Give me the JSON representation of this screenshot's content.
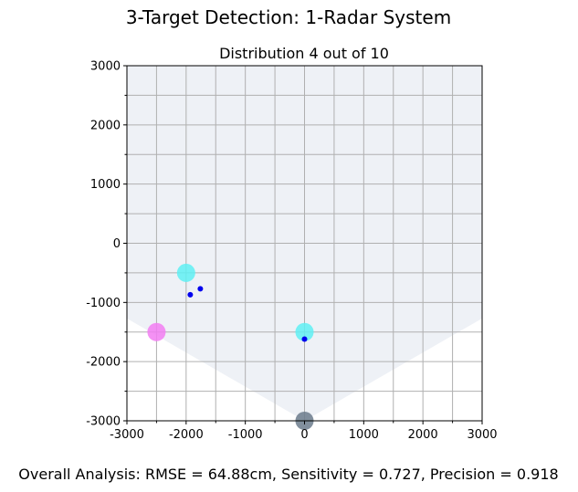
{
  "figure": {
    "title": "3-Target Detection: 1-Radar System",
    "footer": "Overall Analysis: RMSE = 64.88cm, Sensitivity = 0.727, Precision = 0.918"
  },
  "chart_data": {
    "type": "scatter",
    "title": "Distribution 4 out of 10",
    "xlabel": "",
    "ylabel": "",
    "xlim": [
      -3000,
      3000
    ],
    "ylim": [
      -3000,
      3000
    ],
    "xticks": [
      -3000,
      -2000,
      -1000,
      0,
      1000,
      2000,
      3000
    ],
    "yticks": [
      -3000,
      -2000,
      -1000,
      0,
      1000,
      2000,
      3000
    ],
    "xticks_minor": [
      -2500,
      -1500,
      -500,
      500,
      1500,
      2500
    ],
    "yticks_minor": [
      -2500,
      -1500,
      -500,
      500,
      1500,
      2500
    ],
    "grid": true,
    "coverage_region": {
      "color": "#eef1f6",
      "polygon": [
        [
          -3000,
          3000
        ],
        [
          3000,
          3000
        ],
        [
          3000,
          -1270
        ],
        [
          0,
          -3000
        ],
        [
          -3000,
          -1270
        ]
      ]
    },
    "series": [
      {
        "role": "radar",
        "color": "#6b7b8c",
        "size": "large",
        "points": [
          [
            0,
            -3000
          ]
        ]
      },
      {
        "role": "target",
        "color": "#5ff0f3",
        "size": "large",
        "points": [
          [
            -2000,
            -500
          ],
          [
            0,
            -1500
          ]
        ]
      },
      {
        "role": "missed-target",
        "color": "#f27ef2",
        "size": "large",
        "points": [
          [
            -2500,
            -1500
          ]
        ]
      },
      {
        "role": "detection",
        "color": "#0000ee",
        "size": "small",
        "points": [
          [
            -1930,
            -870
          ],
          [
            -1760,
            -770
          ],
          [
            0,
            -1620
          ]
        ]
      }
    ]
  }
}
